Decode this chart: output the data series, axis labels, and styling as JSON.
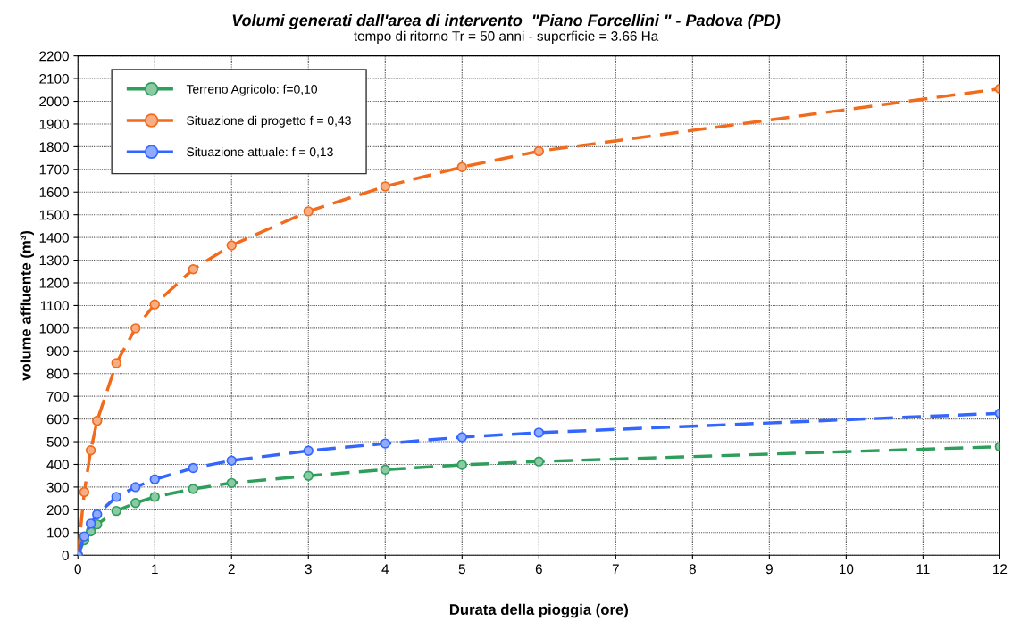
{
  "chart_data": {
    "type": "line",
    "title": "Volumi generati dall'area di intervento  \"Piano Forcellini \" - Padova (PD)",
    "subtitle": "tempo di ritorno Tr = 50 anni - superficie = 3.66 Ha",
    "xlabel": "Durata della pioggia (ore)",
    "ylabel": "volume affluente (m³)",
    "x": [
      0,
      0.083,
      0.167,
      0.25,
      0.5,
      0.75,
      1,
      1.5,
      2,
      3,
      4,
      5,
      6,
      12
    ],
    "series": [
      {
        "name": "Terreno Agricolo: f=0,10",
        "color": "#2e9e5b",
        "values": [
          0,
          66,
          105,
          136,
          195,
          230,
          257,
          292,
          318,
          350,
          377,
          398,
          413,
          478
        ]
      },
      {
        "name": "Situazione di progetto f = 0,43",
        "color": "#f26b1d",
        "values": [
          0,
          278,
          462,
          592,
          846,
          1000,
          1105,
          1260,
          1365,
          1515,
          1625,
          1710,
          1780,
          2055
        ]
      },
      {
        "name": "Situazione attuale: f = 0,13",
        "color": "#3366ff",
        "values": [
          0,
          83,
          139,
          180,
          257,
          300,
          334,
          384,
          417,
          460,
          492,
          520,
          540,
          625
        ]
      }
    ],
    "xlim": [
      0,
      12
    ],
    "ylim": [
      0,
      2200
    ],
    "xticks": [
      0,
      1,
      2,
      3,
      4,
      5,
      6,
      7,
      8,
      9,
      10,
      11,
      12
    ],
    "yticks": [
      0,
      100,
      200,
      300,
      400,
      500,
      600,
      700,
      800,
      900,
      1000,
      1100,
      1200,
      1300,
      1400,
      1500,
      1600,
      1700,
      1800,
      1900,
      2000,
      2100,
      2200
    ],
    "grid": true,
    "legend": "top left",
    "marker": "circle",
    "line_style": "dashed"
  }
}
